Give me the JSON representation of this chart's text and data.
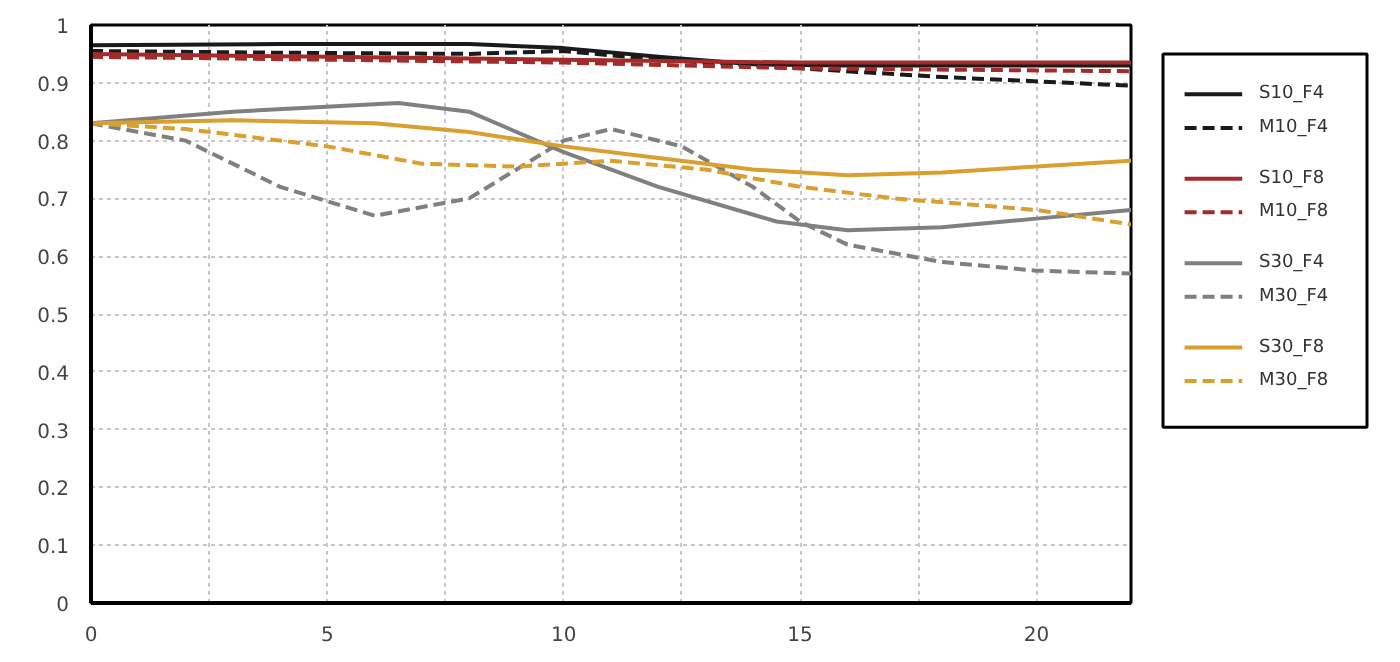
{
  "chart_data": {
    "type": "line",
    "xlim": [
      0,
      22
    ],
    "ylim": [
      0,
      1
    ],
    "xticks": [
      0,
      {
        "value": 2.5,
        "label": null
      },
      5,
      {
        "value": 7.5,
        "label": null
      },
      10,
      {
        "value": 12.5,
        "label": null
      },
      15,
      {
        "value": 17.5,
        "label": null
      },
      20
    ],
    "yticks": [
      0,
      0.1,
      0.2,
      0.3,
      0.4,
      0.5,
      0.6,
      0.7,
      0.8,
      0.9,
      1
    ],
    "grid": true,
    "legend": "right",
    "series": [
      {
        "name": "S10_F4",
        "color": "#1a1a1a",
        "line_style": "solid",
        "x": [
          0,
          4,
          8,
          10,
          12,
          14,
          16,
          22
        ],
        "values": [
          0.965,
          0.967,
          0.967,
          0.96,
          0.945,
          0.932,
          0.93,
          0.93
        ]
      },
      {
        "name": "M10_F4",
        "color": "#1a1a1a",
        "line_style": "dashed",
        "x": [
          0,
          4,
          8,
          10,
          12,
          15,
          18,
          22
        ],
        "values": [
          0.955,
          0.952,
          0.95,
          0.955,
          0.94,
          0.925,
          0.91,
          0.895
        ]
      },
      {
        "name": "S10_F8",
        "color": "#a52a2a",
        "line_style": "solid",
        "x": [
          0,
          5,
          10,
          15,
          22
        ],
        "values": [
          0.95,
          0.945,
          0.94,
          0.935,
          0.935
        ]
      },
      {
        "name": "M10_F8",
        "color": "#a52a2a",
        "line_style": "dashed",
        "x": [
          0,
          5,
          10,
          15,
          22
        ],
        "values": [
          0.945,
          0.94,
          0.935,
          0.925,
          0.92
        ]
      },
      {
        "name": "S30_F4",
        "color": "#808080",
        "line_style": "solid",
        "x": [
          0,
          3,
          6.5,
          8,
          10,
          12,
          14.5,
          16,
          18,
          20,
          22
        ],
        "values": [
          0.83,
          0.85,
          0.865,
          0.85,
          0.78,
          0.72,
          0.66,
          0.645,
          0.65,
          0.665,
          0.68
        ]
      },
      {
        "name": "M30_F4",
        "color": "#808080",
        "line_style": "dashed",
        "x": [
          0,
          2,
          4,
          6,
          8,
          10,
          11,
          12.5,
          14,
          15,
          16,
          18,
          20,
          22
        ],
        "values": [
          0.83,
          0.8,
          0.72,
          0.67,
          0.7,
          0.8,
          0.82,
          0.79,
          0.72,
          0.66,
          0.62,
          0.59,
          0.575,
          0.57
        ]
      },
      {
        "name": "S30_F8",
        "color": "#d9a030",
        "line_style": "solid",
        "x": [
          0,
          3,
          6,
          8,
          10,
          12,
          14,
          16,
          18,
          20,
          22
        ],
        "values": [
          0.83,
          0.835,
          0.83,
          0.815,
          0.79,
          0.77,
          0.75,
          0.74,
          0.745,
          0.755,
          0.765
        ]
      },
      {
        "name": "M30_F8",
        "color": "#d9a030",
        "line_style": "dashed",
        "x": [
          0,
          2,
          5,
          7,
          9,
          11,
          13,
          15,
          17,
          20,
          22
        ],
        "values": [
          0.83,
          0.82,
          0.79,
          0.76,
          0.755,
          0.765,
          0.75,
          0.72,
          0.7,
          0.68,
          0.655
        ]
      }
    ]
  }
}
